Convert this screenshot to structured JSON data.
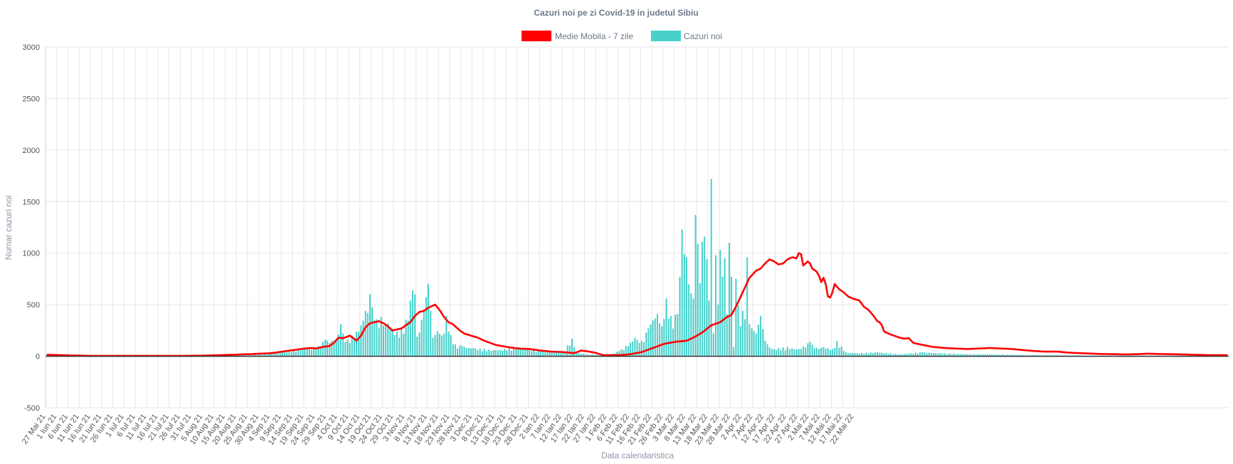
{
  "chart_data": {
    "type": "bar",
    "title": "Cazuri noi pe zi Covid-19 in judetul Sibiu",
    "xlabel": "Data calendaristica",
    "ylabel": "Numar cazuri noi",
    "ylim": [
      -500,
      3000
    ],
    "yticks": [
      3000,
      2500,
      2000,
      1500,
      1000,
      500,
      0,
      -500
    ],
    "grid": true,
    "legend_position": "top",
    "x_start": "27 Mai 21",
    "x_tick_labels": [
      "27 Mai 21",
      "1 Iun 21",
      "6 Iun 21",
      "11 Iun 21",
      "16 Iun 21",
      "21 Iun 21",
      "26 Iun 21",
      "1 Iul 21",
      "6 Iul 21",
      "11 Iul 21",
      "16 Iul 21",
      "21 Iul 21",
      "26 Iul 21",
      "31 Iul 21",
      "5 Aug 21",
      "10 Aug 21",
      "15 Aug 21",
      "20 Aug 21",
      "25 Aug 21",
      "30 Aug 21",
      "4 Sep 21",
      "9 Sep 21",
      "14 Sep 21",
      "19 Sep 21",
      "24 Sep 21",
      "29 Sep 21",
      "4 Oct 21",
      "9 Oct 21",
      "14 Oct 21",
      "19 Oct 21",
      "24 Oct 21",
      "29 Oct 21",
      "3 Nov 21",
      "8 Nov 21",
      "13 Nov 21",
      "18 Nov 21",
      "23 Nov 21",
      "28 Nov 21",
      "3 Dec 21",
      "8 Dec 21",
      "13 Dec 21",
      "18 Dec 21",
      "23 Dec 21",
      "28 Dec 21",
      "2 Ian 22",
      "7 Ian 22",
      "12 Ian 22",
      "17 Ian 22",
      "22 Ian 22",
      "27 Ian 22",
      "1 Feb 22",
      "6 Feb 22",
      "11 Feb 22",
      "16 Feb 22",
      "21 Feb 22",
      "26 Feb 22",
      "3 Mar 22",
      "8 Mar 22",
      "13 Mar 22",
      "18 Mar 22",
      "23 Mar 22",
      "28 Mar 22",
      "2 Apr 22",
      "7 Apr 22",
      "12 Apr 22",
      "17 Apr 22",
      "22 Apr 22",
      "27 Apr 22",
      "2 Mai 22",
      "7 Mai 22",
      "12 Mai 22",
      "17 Mai 22",
      "22 Mai 22"
    ],
    "series": [
      {
        "name": "Medie Mobila - 7 zile",
        "type": "line",
        "color": "#ff0000",
        "anchors": [
          [
            0,
            15
          ],
          [
            10,
            8
          ],
          [
            20,
            4
          ],
          [
            40,
            3
          ],
          [
            60,
            4
          ],
          [
            70,
            6
          ],
          [
            80,
            12
          ],
          [
            90,
            20
          ],
          [
            95,
            25
          ],
          [
            100,
            30
          ],
          [
            105,
            45
          ],
          [
            110,
            60
          ],
          [
            115,
            75
          ],
          [
            118,
            80
          ],
          [
            120,
            75
          ],
          [
            123,
            90
          ],
          [
            126,
            100
          ],
          [
            128,
            130
          ],
          [
            130,
            180
          ],
          [
            132,
            175
          ],
          [
            134,
            190
          ],
          [
            135,
            200
          ],
          [
            137,
            170
          ],
          [
            138,
            150
          ],
          [
            140,
            200
          ],
          [
            142,
            280
          ],
          [
            144,
            320
          ],
          [
            146,
            330
          ],
          [
            148,
            340
          ],
          [
            150,
            320
          ],
          [
            152,
            290
          ],
          [
            154,
            250
          ],
          [
            156,
            260
          ],
          [
            158,
            270
          ],
          [
            160,
            300
          ],
          [
            162,
            330
          ],
          [
            164,
            390
          ],
          [
            166,
            430
          ],
          [
            168,
            440
          ],
          [
            170,
            470
          ],
          [
            172,
            490
          ],
          [
            173,
            500
          ],
          [
            175,
            450
          ],
          [
            177,
            380
          ],
          [
            179,
            330
          ],
          [
            181,
            310
          ],
          [
            184,
            250
          ],
          [
            186,
            220
          ],
          [
            189,
            200
          ],
          [
            192,
            180
          ],
          [
            195,
            150
          ],
          [
            200,
            110
          ],
          [
            205,
            90
          ],
          [
            210,
            75
          ],
          [
            215,
            70
          ],
          [
            220,
            55
          ],
          [
            225,
            45
          ],
          [
            230,
            40
          ],
          [
            233,
            35
          ],
          [
            235,
            30
          ],
          [
            238,
            55
          ],
          [
            240,
            50
          ],
          [
            243,
            40
          ],
          [
            245,
            30
          ],
          [
            248,
            10
          ],
          [
            255,
            10
          ],
          [
            260,
            20
          ],
          [
            265,
            40
          ],
          [
            270,
            80
          ],
          [
            275,
            120
          ],
          [
            280,
            140
          ],
          [
            285,
            150
          ],
          [
            288,
            180
          ],
          [
            292,
            230
          ],
          [
            296,
            300
          ],
          [
            300,
            330
          ],
          [
            303,
            380
          ],
          [
            305,
            400
          ],
          [
            307,
            480
          ],
          [
            310,
            620
          ],
          [
            313,
            760
          ],
          [
            316,
            830
          ],
          [
            318,
            850
          ],
          [
            320,
            900
          ],
          [
            322,
            940
          ],
          [
            324,
            920
          ],
          [
            326,
            890
          ],
          [
            328,
            900
          ],
          [
            330,
            940
          ],
          [
            332,
            960
          ],
          [
            334,
            950
          ],
          [
            335,
            1000
          ],
          [
            336,
            990
          ],
          [
            337,
            880
          ],
          [
            339,
            920
          ],
          [
            340,
            900
          ],
          [
            341,
            850
          ],
          [
            343,
            820
          ],
          [
            344,
            780
          ],
          [
            345,
            720
          ],
          [
            346,
            760
          ],
          [
            347,
            700
          ],
          [
            348,
            580
          ],
          [
            349,
            570
          ],
          [
            350,
            620
          ],
          [
            351,
            700
          ],
          [
            353,
            650
          ],
          [
            355,
            620
          ],
          [
            357,
            580
          ],
          [
            359,
            560
          ],
          [
            362,
            540
          ],
          [
            364,
            480
          ],
          [
            366,
            450
          ],
          [
            368,
            400
          ],
          [
            370,
            340
          ],
          [
            371,
            330
          ],
          [
            372,
            300
          ],
          [
            373,
            240
          ],
          [
            376,
            210
          ],
          [
            380,
            180
          ],
          [
            382,
            170
          ],
          [
            384,
            175
          ],
          [
            386,
            130
          ],
          [
            390,
            110
          ],
          [
            395,
            90
          ],
          [
            400,
            80
          ],
          [
            410,
            70
          ],
          [
            420,
            80
          ],
          [
            430,
            70
          ],
          [
            440,
            50
          ],
          [
            445,
            45
          ],
          [
            450,
            45
          ],
          [
            455,
            35
          ],
          [
            460,
            30
          ],
          [
            470,
            22
          ],
          [
            480,
            18
          ],
          [
            486,
            20
          ],
          [
            490,
            25
          ],
          [
            495,
            22
          ],
          [
            505,
            18
          ],
          [
            515,
            12
          ],
          [
            520,
            10
          ],
          [
            526,
            10
          ]
        ]
      },
      {
        "name": "Cazuri noi",
        "type": "bar",
        "color": "#48d1cc",
        "peaks": [
          [
            0,
            10
          ],
          [
            20,
            5
          ],
          [
            60,
            5
          ],
          [
            90,
            10
          ],
          [
            100,
            25
          ],
          [
            110,
            60
          ],
          [
            115,
            75
          ],
          [
            120,
            80
          ],
          [
            124,
            160
          ],
          [
            127,
            150
          ],
          [
            130,
            210
          ],
          [
            131,
            310
          ],
          [
            133,
            140
          ],
          [
            136,
            200
          ],
          [
            140,
            300
          ],
          [
            142,
            440
          ],
          [
            143,
            420
          ],
          [
            144,
            600
          ],
          [
            146,
            350
          ],
          [
            149,
            380
          ],
          [
            152,
            320
          ],
          [
            156,
            240
          ],
          [
            158,
            280
          ],
          [
            160,
            350
          ],
          [
            162,
            540
          ],
          [
            163,
            640
          ],
          [
            164,
            600
          ],
          [
            165,
            190
          ],
          [
            168,
            450
          ],
          [
            170,
            700
          ],
          [
            172,
            180
          ],
          [
            174,
            240
          ],
          [
            177,
            220
          ],
          [
            178,
            390
          ],
          [
            181,
            120
          ],
          [
            185,
            100
          ],
          [
            190,
            80
          ],
          [
            200,
            60
          ],
          [
            210,
            90
          ],
          [
            220,
            50
          ],
          [
            230,
            40
          ],
          [
            234,
            170
          ],
          [
            236,
            40
          ],
          [
            240,
            20
          ],
          [
            250,
            10
          ],
          [
            255,
            50
          ],
          [
            258,
            100
          ],
          [
            262,
            180
          ],
          [
            265,
            150
          ],
          [
            268,
            270
          ],
          [
            270,
            350
          ],
          [
            272,
            410
          ],
          [
            274,
            290
          ],
          [
            276,
            560
          ],
          [
            278,
            390
          ],
          [
            281,
            410
          ],
          [
            282,
            770
          ],
          [
            283,
            1230
          ],
          [
            284,
            990
          ],
          [
            285,
            960
          ],
          [
            287,
            610
          ],
          [
            288,
            560
          ],
          [
            289,
            1370
          ],
          [
            290,
            1090
          ],
          [
            291,
            710
          ],
          [
            292,
            1110
          ],
          [
            293,
            1160
          ],
          [
            294,
            940
          ],
          [
            295,
            540
          ],
          [
            296,
            1720
          ],
          [
            297,
            220
          ],
          [
            298,
            980
          ],
          [
            299,
            500
          ],
          [
            300,
            1030
          ],
          [
            302,
            950
          ],
          [
            303,
            410
          ],
          [
            304,
            1100
          ],
          [
            305,
            770
          ],
          [
            306,
            90
          ],
          [
            307,
            750
          ],
          [
            309,
            290
          ],
          [
            310,
            440
          ],
          [
            311,
            360
          ],
          [
            312,
            960
          ],
          [
            313,
            310
          ],
          [
            314,
            270
          ],
          [
            316,
            220
          ],
          [
            318,
            390
          ],
          [
            320,
            150
          ],
          [
            323,
            70
          ],
          [
            326,
            80
          ],
          [
            330,
            90
          ],
          [
            335,
            70
          ],
          [
            340,
            140
          ],
          [
            342,
            80
          ],
          [
            346,
            90
          ],
          [
            350,
            70
          ],
          [
            352,
            150
          ],
          [
            356,
            40
          ],
          [
            360,
            30
          ],
          [
            370,
            40
          ],
          [
            380,
            20
          ],
          [
            390,
            40
          ],
          [
            400,
            30
          ],
          [
            410,
            20
          ],
          [
            420,
            20
          ],
          [
            430,
            15
          ],
          [
            440,
            10
          ],
          [
            450,
            10
          ],
          [
            460,
            8
          ],
          [
            470,
            5
          ],
          [
            480,
            5
          ]
        ]
      }
    ]
  }
}
